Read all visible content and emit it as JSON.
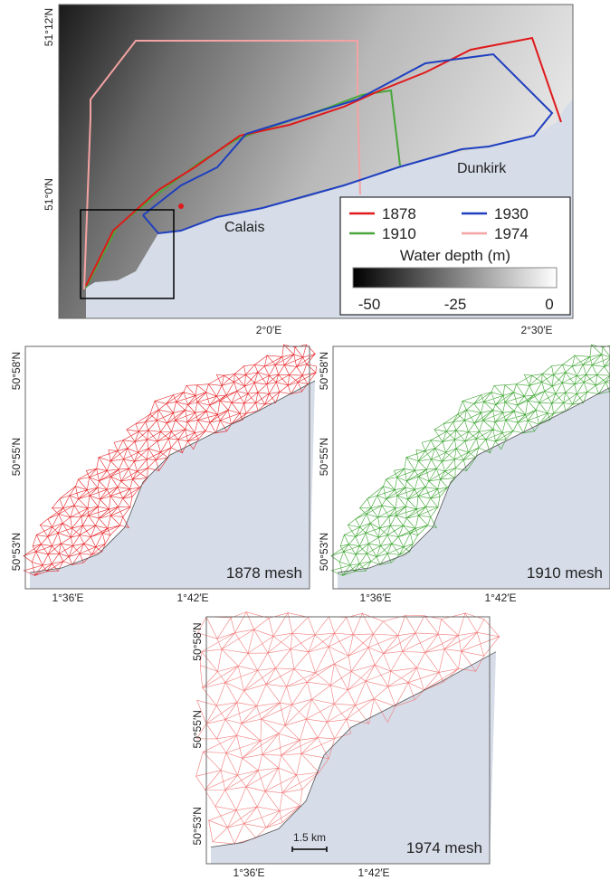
{
  "top_map": {
    "y_labels": [
      "51°12′N",
      "51°0′N"
    ],
    "x_labels": [
      "2°0′E",
      "2°30′E"
    ],
    "places": [
      "Calais",
      "Dunkirk"
    ],
    "legend": [
      {
        "label": "1878",
        "color": "#e0191b"
      },
      {
        "label": "1930",
        "color": "#1f3fbf"
      },
      {
        "label": "1910",
        "color": "#4aa63c"
      },
      {
        "label": "1974",
        "color": "#f4a3a3"
      }
    ],
    "colorbar": {
      "title": "Water depth (m)",
      "ticks": [
        "-50",
        "-25",
        "0"
      ]
    }
  },
  "meshes": [
    {
      "label": "1878 mesh",
      "color": "#e8262a",
      "y_labels": [
        "50°58′N",
        "50°55′N",
        "50°53′N"
      ],
      "x_labels": [
        "1°36′E",
        "1°42′E"
      ]
    },
    {
      "label": "1910 mesh",
      "color": "#3aa32e",
      "y_labels": [
        "50°58′N",
        "50°55′N",
        "50°53′N"
      ],
      "x_labels": [
        "1°36′E",
        "1°42′E"
      ]
    },
    {
      "label": "1974 mesh",
      "color": "#f27c7c",
      "y_labels": [
        "50°58′N",
        "50°55′N",
        "50°53′N"
      ],
      "x_labels": [
        "1°36′E",
        "1°42′E"
      ]
    }
  ],
  "scale_bar": "1.5 km"
}
